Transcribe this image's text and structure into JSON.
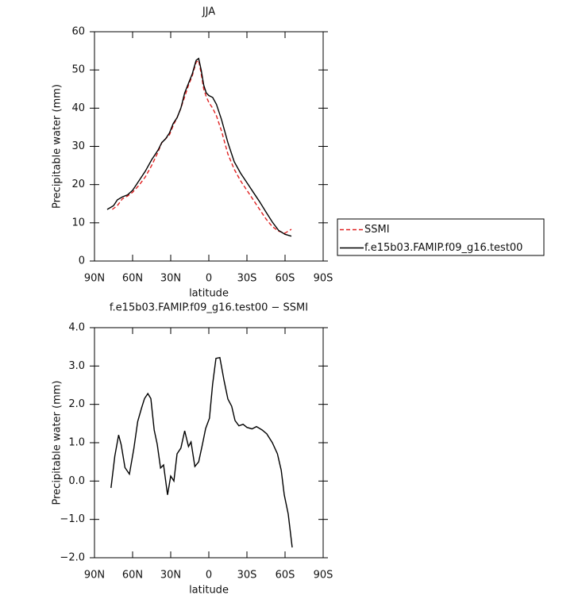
{
  "chart_data": [
    {
      "type": "line",
      "title": "JJA",
      "xlabel": "latitude",
      "ylabel": "Precipitable water (mm)",
      "xlim": [
        90,
        -90
      ],
      "ylim": [
        0,
        60
      ],
      "xticks": [
        {
          "value": 90,
          "label": "90N"
        },
        {
          "value": 60,
          "label": "60N"
        },
        {
          "value": 30,
          "label": "30N"
        },
        0,
        {
          "value": -30,
          "label": "30S"
        },
        {
          "value": -60,
          "label": "60S"
        },
        {
          "value": -90,
          "label": "90S"
        }
      ],
      "yticks": [
        0,
        10,
        20,
        30,
        40,
        50,
        60
      ],
      "legend": "right",
      "series": [
        {
          "name": "SSMI",
          "color": "#e02020",
          "dash": true,
          "x": [
            76,
            72,
            68,
            64,
            60,
            55,
            50,
            45,
            40,
            37,
            34,
            31,
            28,
            25,
            22,
            19,
            16,
            13,
            10,
            8,
            6,
            4,
            2,
            0,
            -3,
            -6,
            -10,
            -15,
            -20,
            -25,
            -30,
            -35,
            -40,
            -45,
            -50,
            -55,
            -60,
            -65
          ],
          "values": [
            13.5,
            14.5,
            16.3,
            17,
            18,
            19.8,
            22,
            25,
            28.5,
            31,
            32,
            33,
            35.5,
            37.5,
            40,
            43,
            46,
            48.5,
            52,
            52.5,
            49,
            45,
            43,
            41.5,
            40,
            38,
            34,
            28,
            24,
            21,
            18.5,
            16,
            13.5,
            11,
            9,
            7.8,
            7.3,
            8.3
          ]
        },
        {
          "name": "f.e15b03.FAMIP.f09_g16.test00",
          "color": "#000000",
          "dash": false,
          "x": [
            80,
            75,
            72,
            68,
            64,
            60,
            55,
            50,
            45,
            40,
            37,
            34,
            31,
            28,
            25,
            22,
            19,
            16,
            13,
            10,
            8,
            6,
            4,
            2,
            0,
            -3,
            -6,
            -10,
            -15,
            -20,
            -25,
            -30,
            -35,
            -40,
            -45,
            -50,
            -55,
            -60,
            -65
          ],
          "values": [
            13.5,
            14.5,
            16,
            16.8,
            17.3,
            18.5,
            21,
            23.5,
            26.5,
            29,
            31,
            32,
            33.5,
            36,
            37.5,
            40,
            44,
            46.5,
            49,
            52.5,
            53,
            50,
            46,
            44,
            43.3,
            42.8,
            41,
            37,
            31,
            26,
            23,
            20.5,
            18,
            15.5,
            12.8,
            10.2,
            8,
            7,
            6.5
          ]
        }
      ]
    },
    {
      "type": "line",
      "title": "f.e15b03.FAMIP.f09_g16.test00 − SSMI",
      "xlabel": "latitude",
      "ylabel": "Precipitable water (mm)",
      "xlim": [
        90,
        -90
      ],
      "ylim": [
        -2,
        4
      ],
      "xticks": [
        {
          "value": 90,
          "label": "90N"
        },
        {
          "value": 60,
          "label": "60N"
        },
        {
          "value": 30,
          "label": "30N"
        },
        0,
        {
          "value": -30,
          "label": "30S"
        },
        {
          "value": -60,
          "label": "60S"
        },
        {
          "value": -90,
          "label": "90S"
        }
      ],
      "yticks": [
        {
          "value": -2,
          "label": "−2.0"
        },
        {
          "value": -1,
          "label": "−1.0"
        },
        {
          "value": 0,
          "label": "0.0"
        },
        {
          "value": 1,
          "label": "1.0"
        },
        {
          "value": 2,
          "label": "2.0"
        },
        {
          "value": 3,
          "label": "3.0"
        },
        {
          "value": 4,
          "label": "4.0"
        }
      ],
      "color": "#000000",
      "x": [
        77,
        74,
        71,
        69,
        66,
        62.5,
        59,
        56,
        53,
        50.6,
        48,
        45.6,
        43,
        40.6,
        38,
        35.6,
        32.5,
        30,
        27.5,
        25,
        22,
        19,
        16,
        14,
        11,
        8,
        5,
        2.5,
        -0.5,
        -3,
        -5.6,
        -8.7,
        -12,
        -15,
        -18,
        -20.6,
        -23.7,
        -27,
        -30,
        -34,
        -37.5,
        -42,
        -45.6,
        -50,
        -54,
        -57,
        -59.4,
        -62.5,
        -65.6
      ],
      "values": [
        -0.18,
        0.65,
        1.2,
        0.95,
        0.35,
        0.18,
        0.85,
        1.55,
        1.9,
        2.15,
        2.28,
        2.15,
        1.33,
        0.96,
        0.34,
        0.42,
        -0.36,
        0.13,
        0.0,
        0.71,
        0.86,
        1.31,
        0.9,
        1.02,
        0.38,
        0.5,
        0.96,
        1.37,
        1.64,
        2.53,
        3.2,
        3.22,
        2.62,
        2.14,
        1.95,
        1.58,
        1.44,
        1.48,
        1.4,
        1.36,
        1.42,
        1.33,
        1.23,
        1.0,
        0.71,
        0.28,
        -0.36,
        -0.86,
        -1.73
      ]
    }
  ]
}
